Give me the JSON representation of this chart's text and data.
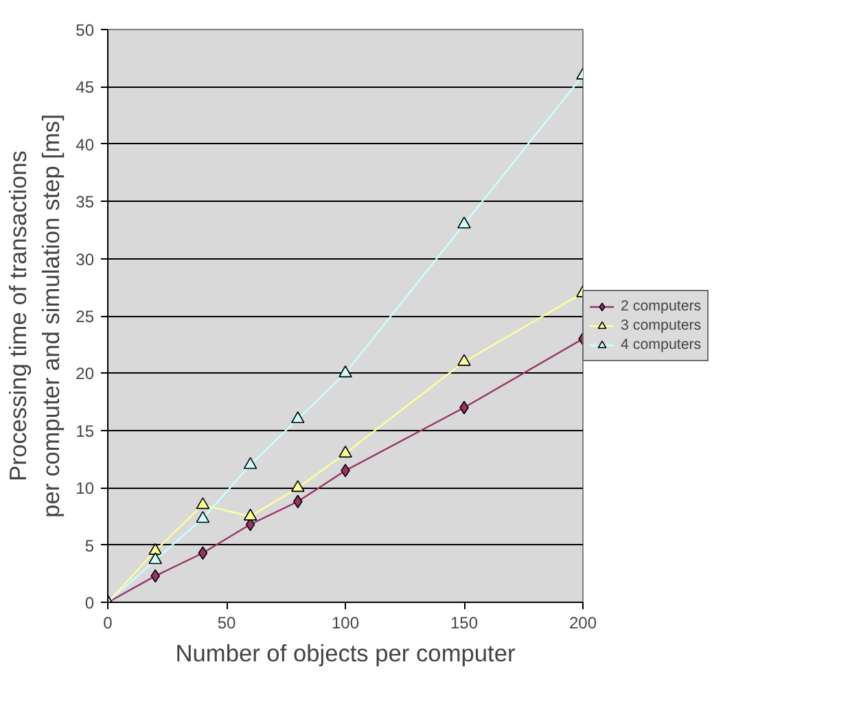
{
  "chart_data": {
    "type": "line",
    "xlabel": "Number of objects per computer",
    "ylabel": "Processing time of transactions\nper computer and simulation step [ms]",
    "x": [
      0,
      20,
      40,
      60,
      80,
      100,
      150,
      200
    ],
    "series": [
      {
        "name": "2 computers",
        "color": "#993366",
        "marker": "diamond",
        "values": [
          0,
          2.3,
          4.3,
          6.8,
          8.8,
          11.5,
          17,
          23
        ]
      },
      {
        "name": "3 computers",
        "color": "#ffff99",
        "marker": "triangle",
        "values": [
          0,
          4.5,
          8.5,
          7.5,
          10,
          13,
          21,
          27
        ]
      },
      {
        "name": "4 computers",
        "color": "#ccffff",
        "marker": "triangle",
        "values": [
          0,
          3.7,
          7.3,
          12,
          16,
          20,
          33,
          46
        ]
      }
    ],
    "xlim": [
      0,
      200
    ],
    "ylim": [
      0,
      50
    ],
    "xticks": [
      0,
      50,
      100,
      150,
      200
    ],
    "yticks": [
      0,
      5,
      10,
      15,
      20,
      25,
      30,
      35,
      40,
      45,
      50
    ],
    "grid": "y",
    "legend": "right",
    "line_style": "solid"
  }
}
